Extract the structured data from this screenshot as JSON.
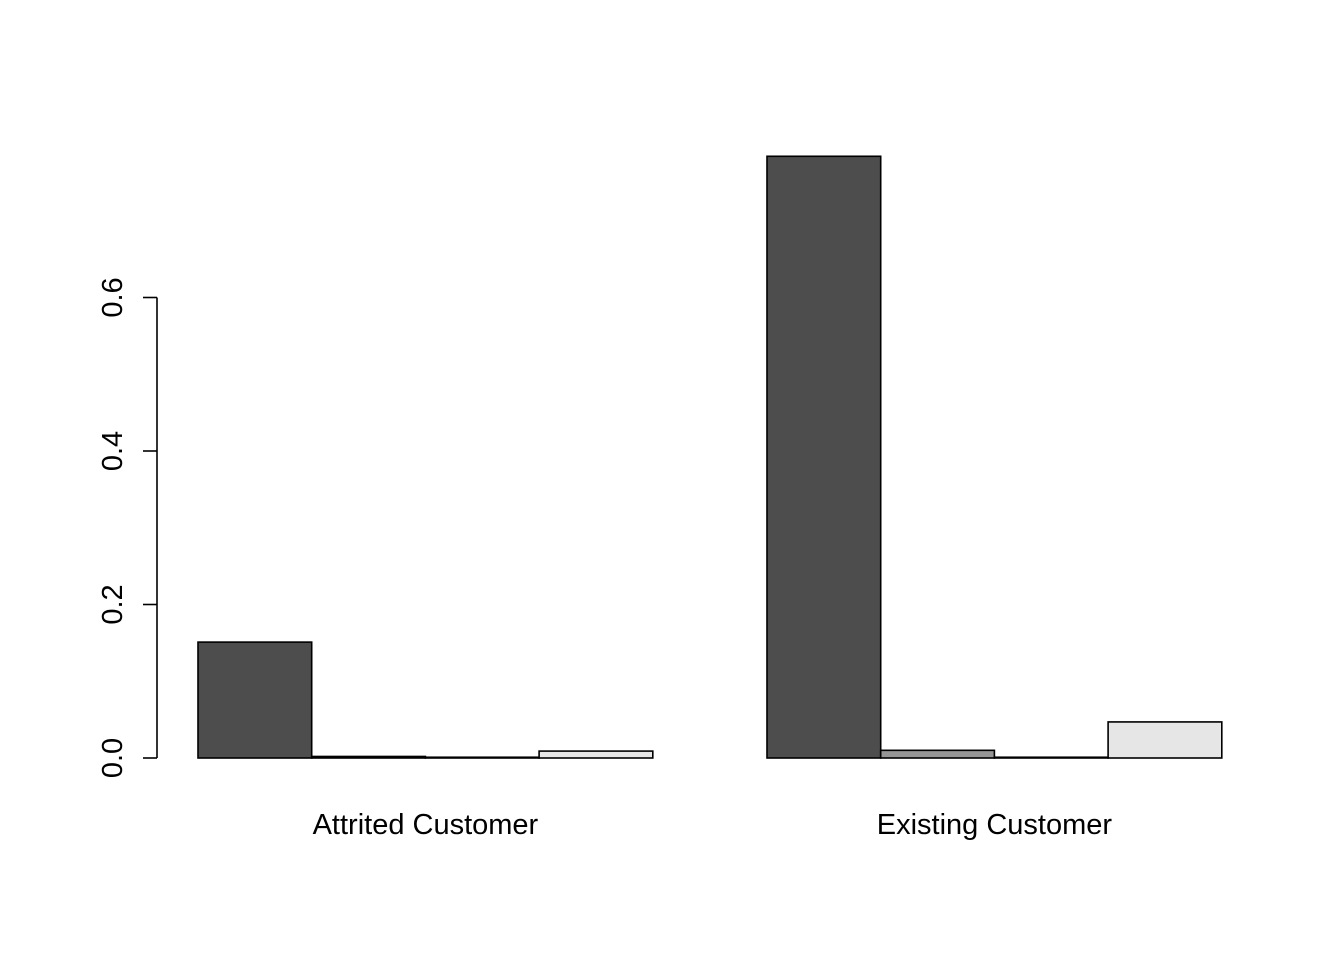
{
  "chart_data": {
    "type": "bar",
    "layout": "grouped",
    "categories": [
      "Attrited Customer",
      "Existing Customer"
    ],
    "series": [
      {
        "values": [
          0.151,
          0.784
        ],
        "color": "#4d4d4d"
      },
      {
        "values": [
          0.002,
          0.01
        ],
        "color": "#969696"
      },
      {
        "values": [
          0.001,
          0.001
        ],
        "color": "#c8c8c8"
      },
      {
        "values": [
          0.009,
          0.047
        ],
        "color": "#e6e6e6"
      }
    ],
    "title": "",
    "xlabel": "",
    "ylabel": "",
    "yticks": [
      0.0,
      0.2,
      0.4,
      0.6
    ],
    "ytick_labels": [
      "0.0",
      "0.2",
      "0.4",
      "0.6"
    ],
    "ylim": [
      0,
      0.784
    ],
    "grid": false,
    "legend": "none"
  }
}
